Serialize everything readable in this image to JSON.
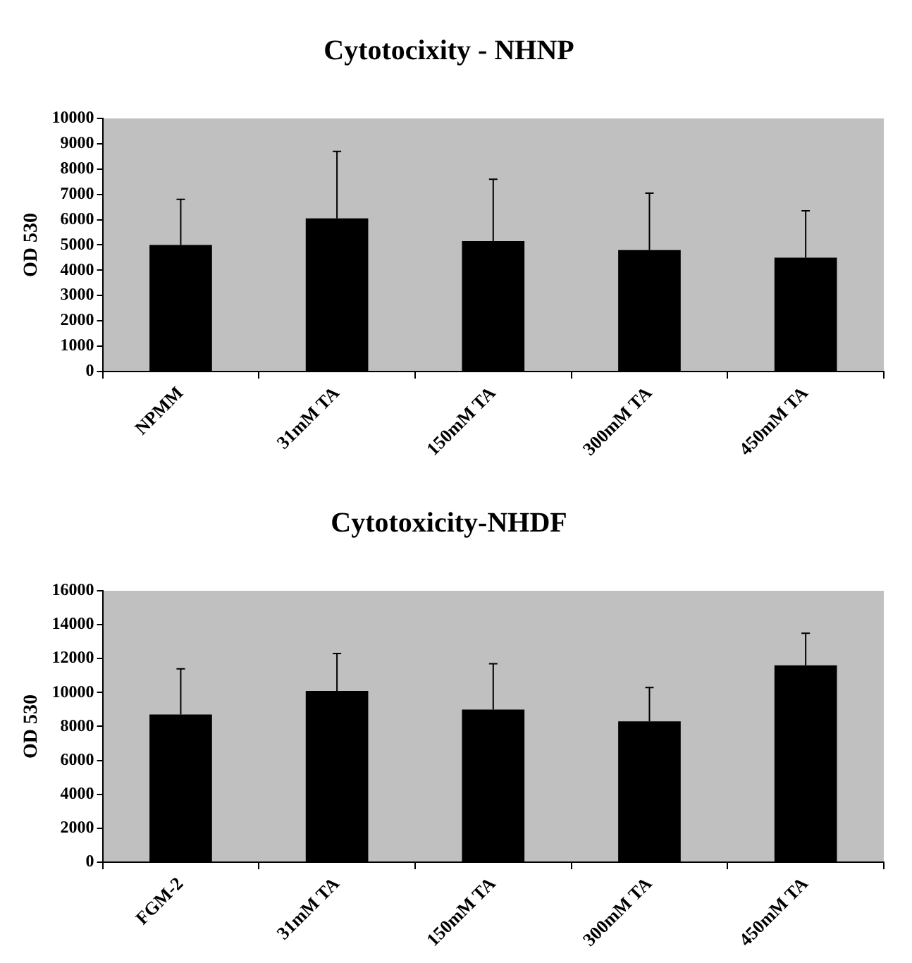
{
  "chart_data": [
    {
      "type": "bar",
      "title": "Cytotocixity - NHNP",
      "ylabel": "OD 530",
      "categories": [
        "NPMM",
        "31mM TA",
        "150mM TA",
        "300mM TA",
        "450mM TA"
      ],
      "values": [
        5000,
        6050,
        5150,
        4800,
        4500
      ],
      "errors": [
        [
          5000,
          6800
        ],
        [
          6050,
          8700
        ],
        [
          5150,
          7600
        ],
        [
          4800,
          7050
        ],
        [
          4500,
          6350
        ]
      ],
      "color": "#000000",
      "ylim": [
        0,
        10000
      ],
      "yticks": [
        0,
        1000,
        2000,
        3000,
        4000,
        5000,
        6000,
        7000,
        8000,
        9000,
        10000
      ],
      "grid": false,
      "legend": false
    },
    {
      "type": "bar",
      "title": "Cytotoxicity-NHDF",
      "ylabel": "OD 530",
      "categories": [
        "FGM-2",
        "31mM TA",
        "150mM TA",
        "300mM TA",
        "450mM TA"
      ],
      "values": [
        8700,
        10100,
        9000,
        8300,
        11600
      ],
      "errors": [
        [
          8700,
          11400
        ],
        [
          10100,
          12300
        ],
        [
          9000,
          11700
        ],
        [
          8300,
          10300
        ],
        [
          11600,
          13500
        ]
      ],
      "color": "#000000",
      "ylim": [
        0,
        16000
      ],
      "yticks": [
        0,
        2000,
        4000,
        6000,
        8000,
        10000,
        12000,
        14000,
        16000
      ],
      "grid": false,
      "legend": false
    }
  ]
}
